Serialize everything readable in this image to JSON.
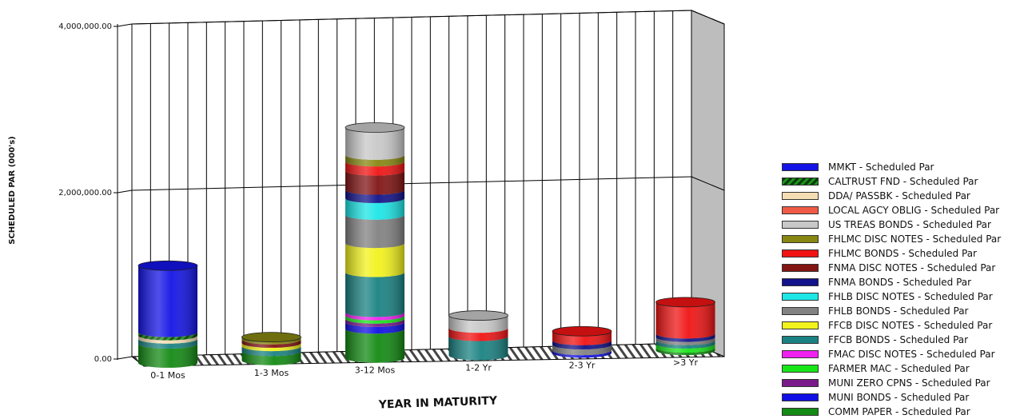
{
  "chart_data": {
    "type": "bar",
    "stacked": true,
    "style": "3d-cylinder",
    "xlabel": "YEAR IN MATURITY",
    "ylabel": "SCHEDULED PAR (000's)",
    "ylim": [
      0,
      4000000
    ],
    "yticks": [
      "0.00",
      "2,000,000.00",
      "4,000,000.00"
    ],
    "ytick_values": [
      0,
      2000000,
      4000000
    ],
    "categories": [
      "0-1 Mos",
      "1-3 Mos",
      "3-12 Mos",
      "1-2 Yr",
      "2-3 Yr",
      ">3 Yr"
    ],
    "grid": true,
    "legend_position": "right",
    "series": [
      {
        "name": "COMM PAPER - Scheduled Par",
        "color": "#138a13",
        "values": [
          230000,
          110000,
          350000,
          0,
          0,
          30000
        ]
      },
      {
        "name": "MUNI BONDS - Scheduled Par",
        "color": "#1010e6",
        "values": [
          0,
          0,
          80000,
          0,
          30000,
          0
        ]
      },
      {
        "name": "MUNI ZERO CPNS - Scheduled Par",
        "color": "#7a1a8a",
        "values": [
          0,
          0,
          40000,
          0,
          0,
          0
        ]
      },
      {
        "name": "FARMER MAC - Scheduled Par",
        "color": "#19e619",
        "values": [
          0,
          0,
          40000,
          0,
          0,
          50000
        ]
      },
      {
        "name": "FMAC DISC NOTES - Scheduled Par",
        "color": "#f020f0",
        "values": [
          0,
          0,
          40000,
          0,
          0,
          0
        ]
      },
      {
        "name": "FFCB BONDS - Scheduled Par",
        "color": "#1a8282",
        "values": [
          60000,
          60000,
          480000,
          230000,
          0,
          40000
        ]
      },
      {
        "name": "FFCB DISC NOTES - Scheduled Par",
        "color": "#f2f21c",
        "values": [
          0,
          40000,
          350000,
          0,
          0,
          0
        ]
      },
      {
        "name": "FHLB BONDS - Scheduled Par",
        "color": "#828282",
        "values": [
          0,
          0,
          340000,
          0,
          70000,
          40000
        ]
      },
      {
        "name": "FHLB DISC NOTES - Scheduled Par",
        "color": "#1ce6e6",
        "values": [
          0,
          0,
          200000,
          0,
          0,
          0
        ]
      },
      {
        "name": "FNMA BONDS - Scheduled Par",
        "color": "#12128a",
        "values": [
          0,
          0,
          100000,
          0,
          50000,
          40000
        ]
      },
      {
        "name": "FNMA DISC NOTES - Scheduled Par",
        "color": "#821414",
        "values": [
          0,
          40000,
          230000,
          0,
          0,
          0
        ]
      },
      {
        "name": "FHLMC BONDS - Scheduled Par",
        "color": "#f01414",
        "values": [
          0,
          0,
          110000,
          100000,
          110000,
          380000
        ]
      },
      {
        "name": "FHLMC DISC NOTES - Scheduled Par",
        "color": "#878712",
        "values": [
          0,
          30000,
          80000,
          0,
          0,
          0
        ]
      },
      {
        "name": "US TREAS BONDS - Scheduled Par",
        "color": "#c8c8c8",
        "values": [
          0,
          0,
          330000,
          150000,
          0,
          0
        ]
      },
      {
        "name": "LOCAL AGCY OBLIG - Scheduled Par",
        "color": "#f05a46",
        "values": [
          0,
          0,
          0,
          0,
          0,
          0
        ]
      },
      {
        "name": "DDA/ PASSBK - Scheduled Par",
        "color": "#f5deb3",
        "values": [
          40000,
          0,
          0,
          0,
          0,
          0
        ]
      },
      {
        "name": "CALTRUST FND - Scheduled Par",
        "color": "#1e961e",
        "pattern": "hatch",
        "values": [
          40000,
          0,
          0,
          0,
          0,
          0
        ]
      },
      {
        "name": "MMKT - Scheduled Par",
        "color": "#1414e6",
        "values": [
          800000,
          0,
          0,
          0,
          0,
          0
        ]
      }
    ]
  }
}
